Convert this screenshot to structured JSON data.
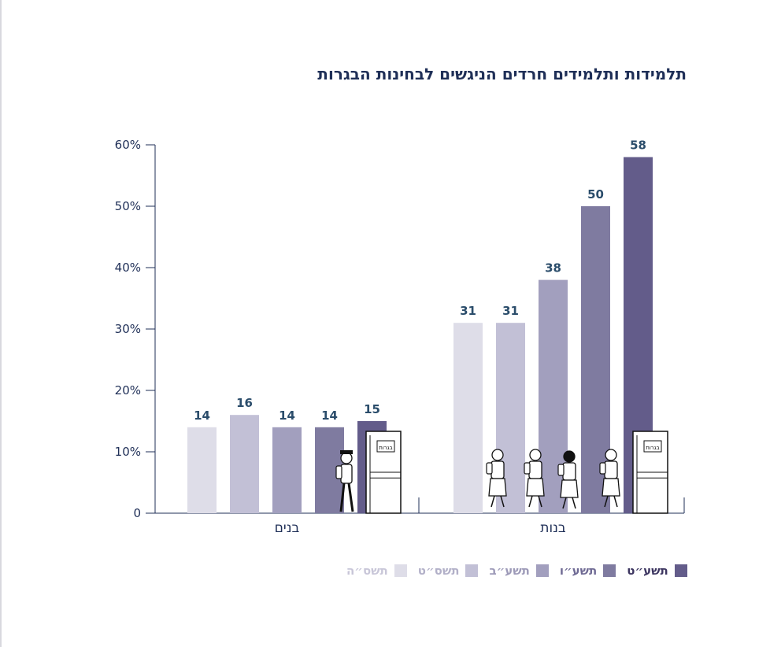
{
  "title": "תלמידות ותלמידים חרדים הניגשים לבחינות הבגרות",
  "colors": {
    "axis": "#1f2f57",
    "value_label": "#2b4d6b",
    "series": [
      "#dedde8",
      "#c2c0d6",
      "#a29fbe",
      "#7f7ba0",
      "#635c8a"
    ],
    "legend_text": [
      "#c8c6d8",
      "#b2b0c8",
      "#9d9ab8",
      "#6f6a94",
      "#3c3560"
    ]
  },
  "chart_data": {
    "type": "bar",
    "title": "תלמידות ותלמידים חרדים הניגשים לבחינות הבגרות",
    "categories": [
      "בנים",
      "בנות"
    ],
    "series": [
      {
        "name": "תשס״ה",
        "values": [
          14,
          31
        ]
      },
      {
        "name": "תשס״ט",
        "values": [
          16,
          31
        ]
      },
      {
        "name": "תשע״ב",
        "values": [
          14,
          38
        ]
      },
      {
        "name": "תשע״ו",
        "values": [
          14,
          50
        ]
      },
      {
        "name": "תשע״ט",
        "values": [
          15,
          58
        ]
      }
    ],
    "ylim": [
      0,
      60
    ],
    "yticks": [
      "0",
      "10%",
      "20%",
      "30%",
      "40%",
      "50%",
      "60%"
    ],
    "xlabel": "",
    "ylabel": "",
    "grid": false,
    "legend_position": "bottom",
    "door_label": "בגרות"
  }
}
